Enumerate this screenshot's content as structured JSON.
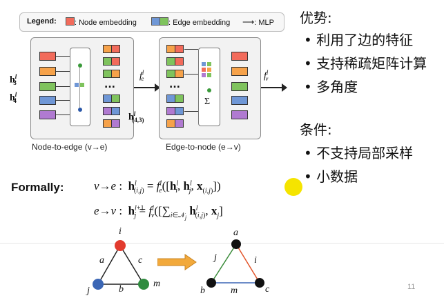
{
  "legend": {
    "title": "Legend:",
    "node_label": ": Node embedding",
    "edge_label": ": Edge embedding",
    "mlp_label": ": MLP"
  },
  "panel1": {
    "caption": "Node-to-edge (v→e)",
    "h3": "h",
    "h3_sup": "l",
    "h3_sub": "3",
    "h4": "h",
    "h4_sup": "l",
    "h4_sub": "4",
    "dots": "..."
  },
  "panel2": {
    "caption": "Edge-to-node (e→v)",
    "h43": "h",
    "h43_sup": "l",
    "h43_sub": "(4,3)",
    "dots": "...",
    "sigma": "Σ"
  },
  "arrows": {
    "fe": "f",
    "fe_sup": "l",
    "fe_sub": "e",
    "fv": "f",
    "fv_sup": "l",
    "fv_sub": "v"
  },
  "formally": {
    "label": "Formally:",
    "eq1": "v→e :  h",
    "eq1_rest": "= f",
    "eq2": "e→v :  h",
    "eq2_rest": "= f"
  },
  "right": {
    "title1": "优势:",
    "bullets1": [
      "利用了边的特征",
      "支持稀疏矩阵计算",
      "多角度"
    ],
    "title2": "条件:",
    "bullets2": [
      "不支持局部采样",
      "小数据"
    ]
  },
  "graph1": {
    "nodes": [
      "i",
      "j",
      "m"
    ],
    "edges": [
      "a",
      "b",
      "c"
    ]
  },
  "graph2": {
    "nodes": [
      "a",
      "b",
      "c"
    ],
    "edges": [
      "j",
      "i",
      "m"
    ]
  },
  "page_number": "11",
  "colors": {
    "red": "#f26b5b",
    "orange": "#f6a24a",
    "green": "#7fc35d",
    "blue": "#6f97d6",
    "purple": "#b07ad1",
    "highlight": "#f5e400"
  }
}
